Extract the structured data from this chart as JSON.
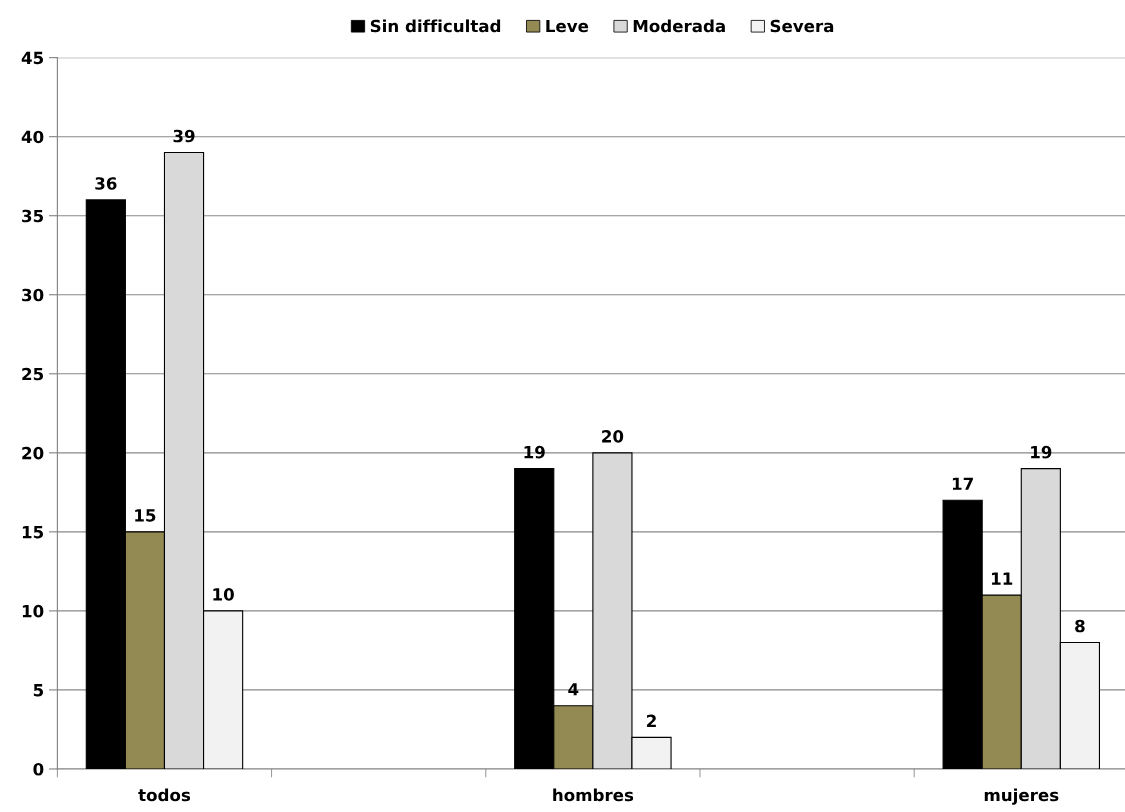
{
  "chart_data": {
    "type": "bar",
    "categories": [
      "todos",
      null,
      "hombres",
      null,
      "mujeres"
    ],
    "series": [
      {
        "name": "Sin difficultad",
        "color": "#000000",
        "values": [
          36,
          null,
          19,
          null,
          17
        ]
      },
      {
        "name": "Leve",
        "color": "#938953",
        "values": [
          15,
          null,
          4,
          null,
          11
        ]
      },
      {
        "name": "Moderada",
        "color": "#d9d9d9",
        "values": [
          39,
          null,
          20,
          null,
          19
        ]
      },
      {
        "name": "Severa",
        "color": "#f2f2f2",
        "values": [
          10,
          null,
          2,
          null,
          8
        ]
      }
    ],
    "ylim": [
      0,
      45
    ],
    "yticks": [
      0,
      5,
      10,
      15,
      20,
      25,
      30,
      35,
      40,
      45
    ],
    "grid": "y",
    "legend": "top",
    "data_labels": true
  }
}
